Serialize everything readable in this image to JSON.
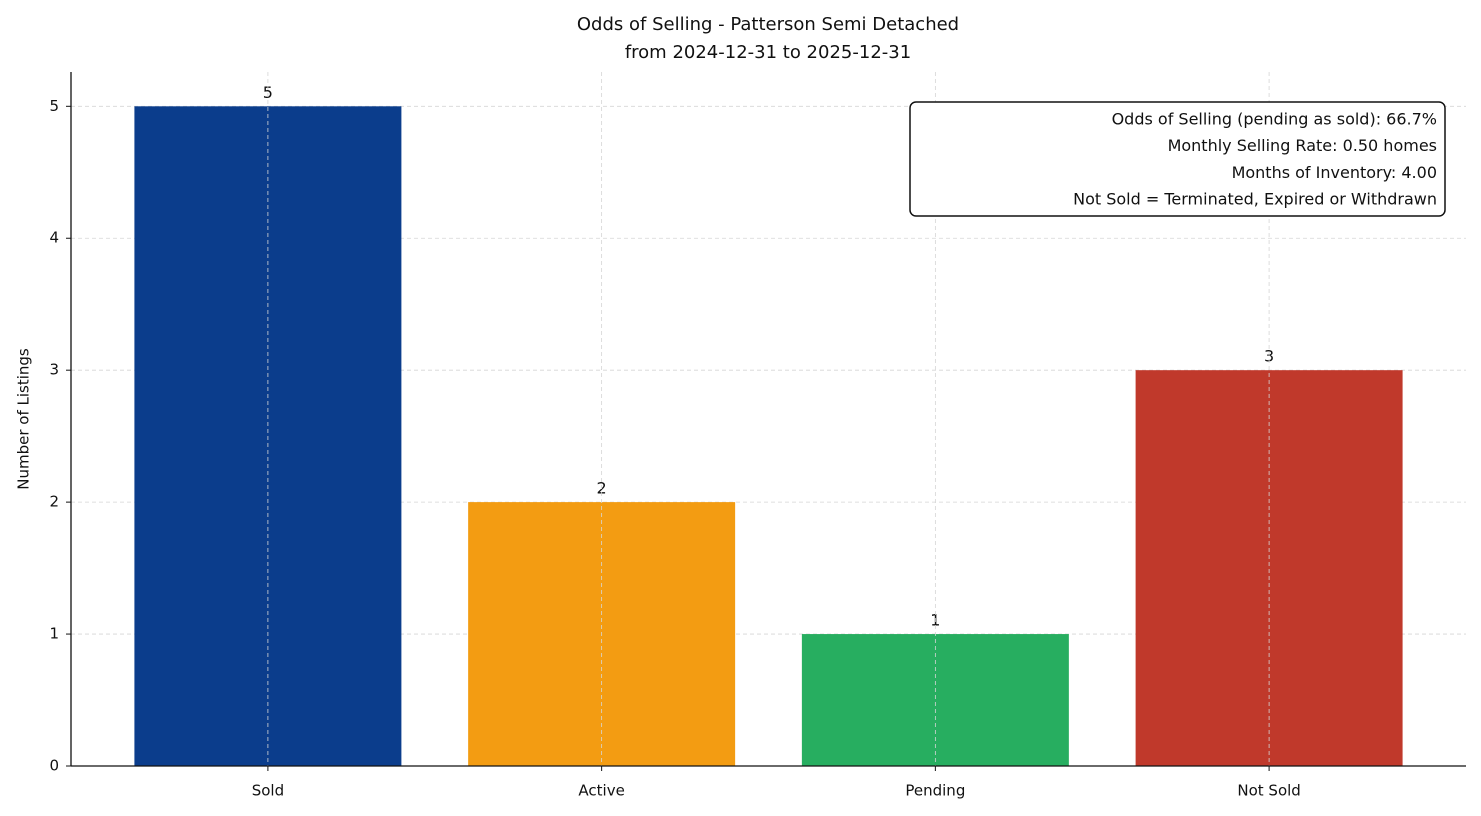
{
  "chart_data": {
    "type": "bar",
    "title": "Odds of Selling - Patterson Semi Detached",
    "subtitle": "from 2024-12-31 to 2025-12-31",
    "y_label": "Number of Listings",
    "categories": [
      "Sold",
      "Active",
      "Pending",
      "Not Sold"
    ],
    "values": [
      5,
      2,
      1,
      3
    ],
    "colors": [
      "#0b3d8c",
      "#f39c12",
      "#27ae60",
      "#c0392b"
    ],
    "ylim": [
      0,
      5.26
    ],
    "yticks": [
      0,
      1,
      2,
      3,
      4,
      5
    ],
    "grid": true,
    "annotations": [
      "Odds of Selling (pending as sold): 66.7%",
      "Monthly Selling Rate: 0.50 homes",
      "Months of Inventory: 4.00",
      "Not Sold = Terminated, Expired or Withdrawn"
    ]
  }
}
